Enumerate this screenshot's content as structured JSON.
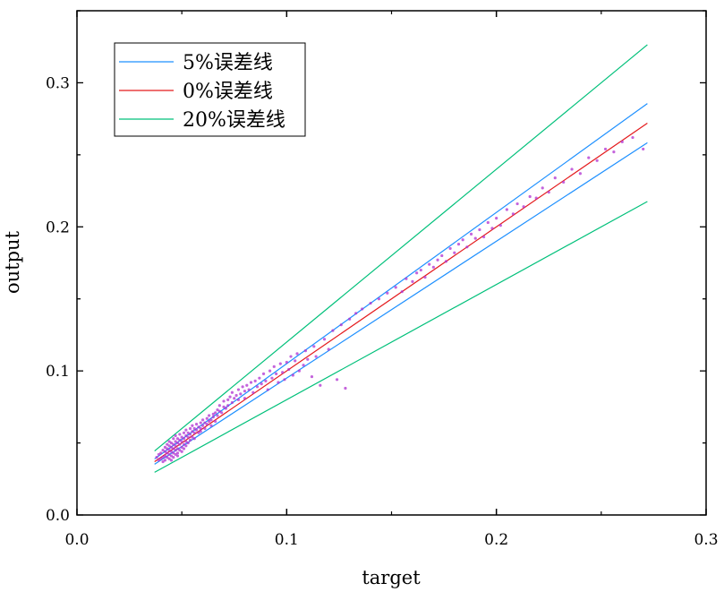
{
  "chart_data": {
    "type": "scatter",
    "title": "",
    "xlabel": "target",
    "ylabel": "output",
    "xlim": [
      0.0,
      0.3
    ],
    "ylim": [
      0.0,
      0.35
    ],
    "x_ticks": [
      0.0,
      0.1,
      0.2,
      0.3
    ],
    "x_tick_labels": [
      "0.0",
      "0.1",
      "0.2",
      "0.3"
    ],
    "y_ticks": [
      0.0,
      0.1,
      0.2,
      0.3
    ],
    "y_tick_labels": [
      "0.0",
      "0.1",
      "0.2",
      "0.3"
    ],
    "grid": false,
    "legend_position": "top-left",
    "legend": [
      {
        "label": "5%误差线",
        "color": "#1e90ff"
      },
      {
        "label": "0%误差线",
        "color": "#e41a1c"
      },
      {
        "label": "20%误差线",
        "color": "#00c07a"
      }
    ],
    "lines": [
      {
        "name": "0%误差线",
        "color": "#e41a1c",
        "x": [
          0.037,
          0.272
        ],
        "y": [
          0.037,
          0.272
        ]
      },
      {
        "name": "5%误差线",
        "color": "#1e90ff",
        "x": [
          0.037,
          0.272
        ],
        "y": [
          0.0389,
          0.2856
        ]
      },
      {
        "name": "5%误差线",
        "color": "#1e90ff",
        "x": [
          0.037,
          0.272
        ],
        "y": [
          0.0352,
          0.2584
        ]
      },
      {
        "name": "20%误差线",
        "color": "#00c07a",
        "x": [
          0.037,
          0.272
        ],
        "y": [
          0.0444,
          0.3264
        ]
      },
      {
        "name": "20%误差线",
        "color": "#00c07a",
        "x": [
          0.037,
          0.272
        ],
        "y": [
          0.0296,
          0.2176
        ]
      }
    ],
    "scatter_color": "#b030d0",
    "points": [
      [
        0.038,
        0.04
      ],
      [
        0.039,
        0.042
      ],
      [
        0.039,
        0.038
      ],
      [
        0.04,
        0.043
      ],
      [
        0.04,
        0.039
      ],
      [
        0.041,
        0.045
      ],
      [
        0.041,
        0.04
      ],
      [
        0.041,
        0.037
      ],
      [
        0.042,
        0.044
      ],
      [
        0.042,
        0.041
      ],
      [
        0.042,
        0.047
      ],
      [
        0.042,
        0.038
      ],
      [
        0.043,
        0.043
      ],
      [
        0.043,
        0.049
      ],
      [
        0.043,
        0.04
      ],
      [
        0.043,
        0.046
      ],
      [
        0.044,
        0.042
      ],
      [
        0.044,
        0.048
      ],
      [
        0.044,
        0.039
      ],
      [
        0.044,
        0.045
      ],
      [
        0.044,
        0.051
      ],
      [
        0.045,
        0.044
      ],
      [
        0.045,
        0.041
      ],
      [
        0.045,
        0.047
      ],
      [
        0.045,
        0.05
      ],
      [
        0.045,
        0.038
      ],
      [
        0.046,
        0.046
      ],
      [
        0.046,
        0.043
      ],
      [
        0.046,
        0.049
      ],
      [
        0.046,
        0.04
      ],
      [
        0.046,
        0.053
      ],
      [
        0.047,
        0.048
      ],
      [
        0.047,
        0.045
      ],
      [
        0.047,
        0.042
      ],
      [
        0.047,
        0.051
      ],
      [
        0.047,
        0.055
      ],
      [
        0.048,
        0.05
      ],
      [
        0.048,
        0.046
      ],
      [
        0.048,
        0.043
      ],
      [
        0.048,
        0.053
      ],
      [
        0.048,
        0.041
      ],
      [
        0.049,
        0.049
      ],
      [
        0.049,
        0.052
      ],
      [
        0.049,
        0.045
      ],
      [
        0.049,
        0.056
      ],
      [
        0.05,
        0.051
      ],
      [
        0.05,
        0.047
      ],
      [
        0.05,
        0.054
      ],
      [
        0.05,
        0.044
      ],
      [
        0.051,
        0.053
      ],
      [
        0.051,
        0.049
      ],
      [
        0.051,
        0.057
      ],
      [
        0.051,
        0.046
      ],
      [
        0.052,
        0.055
      ],
      [
        0.052,
        0.051
      ],
      [
        0.052,
        0.048
      ],
      [
        0.052,
        0.059
      ],
      [
        0.053,
        0.054
      ],
      [
        0.053,
        0.057
      ],
      [
        0.053,
        0.05
      ],
      [
        0.054,
        0.056
      ],
      [
        0.054,
        0.052
      ],
      [
        0.054,
        0.06
      ],
      [
        0.055,
        0.058
      ],
      [
        0.055,
        0.054
      ],
      [
        0.055,
        0.062
      ],
      [
        0.056,
        0.057
      ],
      [
        0.056,
        0.06
      ],
      [
        0.056,
        0.053
      ],
      [
        0.057,
        0.059
      ],
      [
        0.057,
        0.063
      ],
      [
        0.058,
        0.061
      ],
      [
        0.058,
        0.057
      ],
      [
        0.059,
        0.064
      ],
      [
        0.059,
        0.06
      ],
      [
        0.06,
        0.062
      ],
      [
        0.06,
        0.066
      ],
      [
        0.061,
        0.064
      ],
      [
        0.061,
        0.06
      ],
      [
        0.062,
        0.067
      ],
      [
        0.062,
        0.063
      ],
      [
        0.063,
        0.065
      ],
      [
        0.063,
        0.069
      ],
      [
        0.064,
        0.066
      ],
      [
        0.064,
        0.062
      ],
      [
        0.065,
        0.07
      ],
      [
        0.065,
        0.068
      ],
      [
        0.066,
        0.071
      ],
      [
        0.066,
        0.065
      ],
      [
        0.067,
        0.073
      ],
      [
        0.067,
        0.069
      ],
      [
        0.068,
        0.072
      ],
      [
        0.068,
        0.076
      ],
      [
        0.069,
        0.071
      ],
      [
        0.07,
        0.075
      ],
      [
        0.07,
        0.079
      ],
      [
        0.071,
        0.074
      ],
      [
        0.072,
        0.08
      ],
      [
        0.072,
        0.076
      ],
      [
        0.073,
        0.082
      ],
      [
        0.074,
        0.078
      ],
      [
        0.074,
        0.085
      ],
      [
        0.075,
        0.081
      ],
      [
        0.076,
        0.083
      ],
      [
        0.077,
        0.087
      ],
      [
        0.077,
        0.08
      ],
      [
        0.078,
        0.084
      ],
      [
        0.079,
        0.089
      ],
      [
        0.08,
        0.086
      ],
      [
        0.08,
        0.081
      ],
      [
        0.081,
        0.09
      ],
      [
        0.082,
        0.087
      ],
      [
        0.083,
        0.092
      ],
      [
        0.084,
        0.085
      ],
      [
        0.085,
        0.093
      ],
      [
        0.086,
        0.089
      ],
      [
        0.087,
        0.095
      ],
      [
        0.088,
        0.091
      ],
      [
        0.089,
        0.098
      ],
      [
        0.09,
        0.093
      ],
      [
        0.091,
        0.087
      ],
      [
        0.092,
        0.1
      ],
      [
        0.093,
        0.095
      ],
      [
        0.094,
        0.103
      ],
      [
        0.095,
        0.098
      ],
      [
        0.096,
        0.092
      ],
      [
        0.097,
        0.105
      ],
      [
        0.098,
        0.099
      ],
      [
        0.099,
        0.094
      ],
      [
        0.1,
        0.106
      ],
      [
        0.101,
        0.101
      ],
      [
        0.102,
        0.11
      ],
      [
        0.103,
        0.097
      ],
      [
        0.104,
        0.107
      ],
      [
        0.105,
        0.112
      ],
      [
        0.106,
        0.1
      ],
      [
        0.108,
        0.104
      ],
      [
        0.109,
        0.114
      ],
      [
        0.11,
        0.108
      ],
      [
        0.112,
        0.096
      ],
      [
        0.113,
        0.117
      ],
      [
        0.114,
        0.11
      ],
      [
        0.116,
        0.09
      ],
      [
        0.118,
        0.122
      ],
      [
        0.12,
        0.115
      ],
      [
        0.122,
        0.128
      ],
      [
        0.124,
        0.094
      ],
      [
        0.126,
        0.132
      ],
      [
        0.128,
        0.088
      ],
      [
        0.13,
        0.136
      ],
      [
        0.133,
        0.14
      ],
      [
        0.136,
        0.143
      ],
      [
        0.14,
        0.147
      ],
      [
        0.144,
        0.15
      ],
      [
        0.148,
        0.154
      ],
      [
        0.152,
        0.158
      ],
      [
        0.155,
        0.155
      ],
      [
        0.157,
        0.164
      ],
      [
        0.16,
        0.162
      ],
      [
        0.162,
        0.168
      ],
      [
        0.164,
        0.17
      ],
      [
        0.166,
        0.165
      ],
      [
        0.168,
        0.174
      ],
      [
        0.17,
        0.172
      ],
      [
        0.172,
        0.177
      ],
      [
        0.174,
        0.18
      ],
      [
        0.176,
        0.176
      ],
      [
        0.178,
        0.185
      ],
      [
        0.18,
        0.182
      ],
      [
        0.182,
        0.188
      ],
      [
        0.184,
        0.191
      ],
      [
        0.186,
        0.186
      ],
      [
        0.188,
        0.195
      ],
      [
        0.19,
        0.192
      ],
      [
        0.192,
        0.198
      ],
      [
        0.194,
        0.193
      ],
      [
        0.196,
        0.203
      ],
      [
        0.198,
        0.199
      ],
      [
        0.2,
        0.206
      ],
      [
        0.202,
        0.201
      ],
      [
        0.205,
        0.212
      ],
      [
        0.208,
        0.209
      ],
      [
        0.21,
        0.216
      ],
      [
        0.213,
        0.214
      ],
      [
        0.216,
        0.221
      ],
      [
        0.219,
        0.22
      ],
      [
        0.222,
        0.227
      ],
      [
        0.225,
        0.224
      ],
      [
        0.228,
        0.234
      ],
      [
        0.232,
        0.231
      ],
      [
        0.236,
        0.24
      ],
      [
        0.24,
        0.237
      ],
      [
        0.244,
        0.248
      ],
      [
        0.248,
        0.246
      ],
      [
        0.252,
        0.254
      ],
      [
        0.256,
        0.252
      ],
      [
        0.26,
        0.259
      ],
      [
        0.265,
        0.262
      ],
      [
        0.27,
        0.254
      ],
      [
        0.059,
        0.058
      ]
    ]
  }
}
